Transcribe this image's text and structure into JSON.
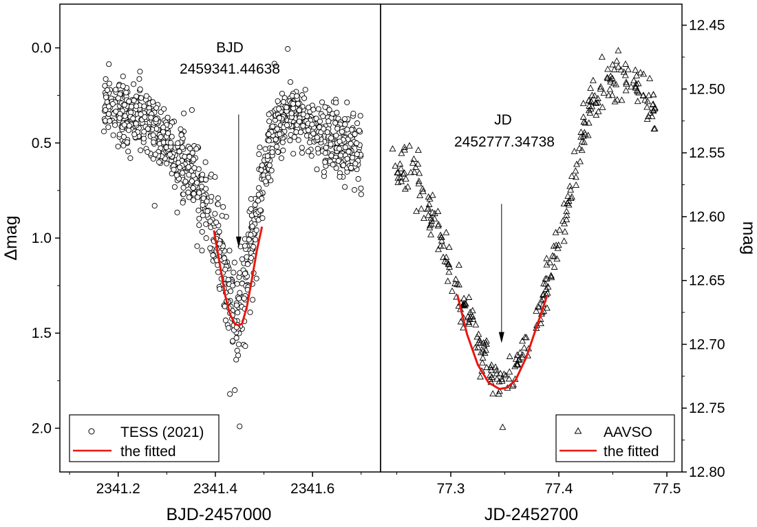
{
  "chart_data": [
    {
      "type": "scatter",
      "panel": "left",
      "xlabel": "BJD-2457000",
      "ylabel": "Δmag",
      "xlim": [
        2341.08,
        2341.74
      ],
      "ylim": [
        2.23,
        -0.23
      ],
      "y_inverted": true,
      "xticks": [
        2341.2,
        2341.4,
        2341.6
      ],
      "xtick_labels": [
        "2341.2",
        "2341.4",
        "2341.6"
      ],
      "yticks": [
        0.0,
        0.5,
        1.0,
        1.5,
        2.0
      ],
      "ytick_labels": [
        "0.0",
        "0.5",
        "1.0",
        "1.5",
        "2.0"
      ],
      "annotation": {
        "lines": [
          "BJD",
          "2459341.44638"
        ],
        "arrow_x": 2341.448,
        "arrow_from_y": 0.35,
        "arrow_to_y": 1.05
      },
      "legend": {
        "position": "bottom-left",
        "entries": [
          "TESS (2021)",
          "the fitted"
        ]
      },
      "colors": {
        "marker": "#000000",
        "fit": "#e8170f"
      },
      "series": [
        {
          "name": "TESS (2021)",
          "marker": "circle",
          "profile_x": [
            2341.17,
            2341.2,
            2341.25,
            2341.3,
            2341.34,
            2341.38,
            2341.41,
            2341.43,
            2341.445,
            2341.46,
            2341.48,
            2341.5,
            2341.52,
            2341.55,
            2341.6,
            2341.65,
            2341.7
          ],
          "profile_y": [
            0.3,
            0.32,
            0.38,
            0.5,
            0.65,
            0.82,
            1.05,
            1.3,
            1.45,
            1.25,
            0.95,
            0.65,
            0.45,
            0.33,
            0.42,
            0.5,
            0.55
          ],
          "scatter": 0.08,
          "count": 1150,
          "extra_points": [
            [
              2341.21,
              0.15
            ],
            [
              2341.45,
              1.99
            ],
            [
              2341.43,
              1.82
            ],
            [
              2341.44,
              1.8
            ],
            [
              2341.275,
              0.83
            ],
            [
              2341.7,
              0.77
            ],
            [
              2341.225,
              0.58
            ]
          ]
        },
        {
          "name": "the fitted",
          "type": "line",
          "x": [
            2341.397,
            2341.41,
            2341.42,
            2341.43,
            2341.44,
            2341.448,
            2341.455,
            2341.465,
            2341.475,
            2341.485,
            2341.496
          ],
          "y": [
            0.96,
            1.15,
            1.3,
            1.4,
            1.45,
            1.46,
            1.45,
            1.36,
            1.22,
            1.07,
            0.94
          ]
        }
      ]
    },
    {
      "type": "scatter",
      "panel": "right",
      "xlabel": "JD-2452700",
      "ylabel": "mag",
      "xlim": [
        77.235,
        77.514
      ],
      "ylim": [
        12.8,
        12.4335
      ],
      "y_inverted": true,
      "xticks": [
        77.3,
        77.4,
        77.5
      ],
      "xtick_labels": [
        "77.3",
        "77.4",
        "77.5"
      ],
      "yticks": [
        12.45,
        12.5,
        12.55,
        12.6,
        12.65,
        12.7,
        12.75,
        12.8
      ],
      "ytick_labels": [
        "12.45",
        "12.50",
        "12.55",
        "12.60",
        "12.65",
        "12.70",
        "12.75",
        "12.80"
      ],
      "annotation": {
        "lines": [
          "JD",
          "2452777.34738"
        ],
        "arrow_x": 77.347,
        "arrow_from_y": 12.59,
        "arrow_to_y": 12.699
      },
      "legend": {
        "position": "bottom-right",
        "entries": [
          "AAVSO",
          "the fitted"
        ]
      },
      "colors": {
        "marker": "#000000",
        "fit": "#e8170f"
      },
      "series": [
        {
          "name": "AAVSO",
          "marker": "triangle",
          "profile_x": [
            77.245,
            77.26,
            77.28,
            77.3,
            77.32,
            77.34,
            77.35,
            77.36,
            77.38,
            77.4,
            77.42,
            77.43,
            77.45,
            77.47,
            77.49
          ],
          "profile_y": [
            12.56,
            12.565,
            12.59,
            12.64,
            12.69,
            12.725,
            12.73,
            12.72,
            12.68,
            12.62,
            12.55,
            12.51,
            12.49,
            12.495,
            12.515
          ],
          "scatter": 0.008,
          "count": 330,
          "extra_points": [
            [
              77.348,
              12.765
            ],
            [
              77.27,
              12.548
            ],
            [
              77.44,
              12.475
            ],
            [
              77.455,
              12.47
            ],
            [
              77.318,
              12.675
            ]
          ]
        },
        {
          "name": "the fitted",
          "type": "line",
          "x": [
            77.306,
            77.315,
            77.325,
            77.335,
            77.345,
            77.352,
            77.36,
            77.37,
            77.38,
            77.389
          ],
          "y": [
            12.661,
            12.692,
            12.716,
            12.73,
            12.735,
            12.734,
            12.728,
            12.71,
            12.685,
            12.662
          ]
        }
      ]
    }
  ]
}
